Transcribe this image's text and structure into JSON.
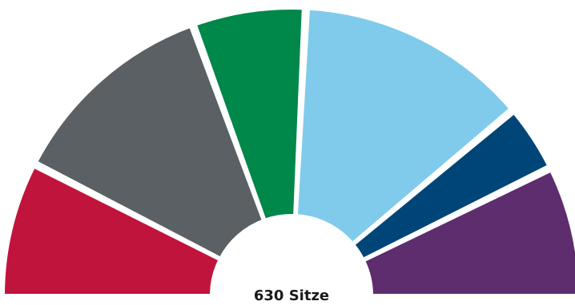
{
  "chart_data": {
    "type": "pie",
    "variant": "parliament-semicircle",
    "total_label": "630 Sitze",
    "total": 630,
    "slices": [
      {
        "value": 95,
        "color": "#c0143c"
      },
      {
        "value": 150,
        "color": "#5a6064"
      },
      {
        "value": 80,
        "color": "#00874a"
      },
      {
        "value": 165,
        "color": "#80cbeb"
      },
      {
        "value": 48,
        "color": "#004578"
      },
      {
        "value": 92,
        "color": "#5e2d6e"
      }
    ]
  }
}
